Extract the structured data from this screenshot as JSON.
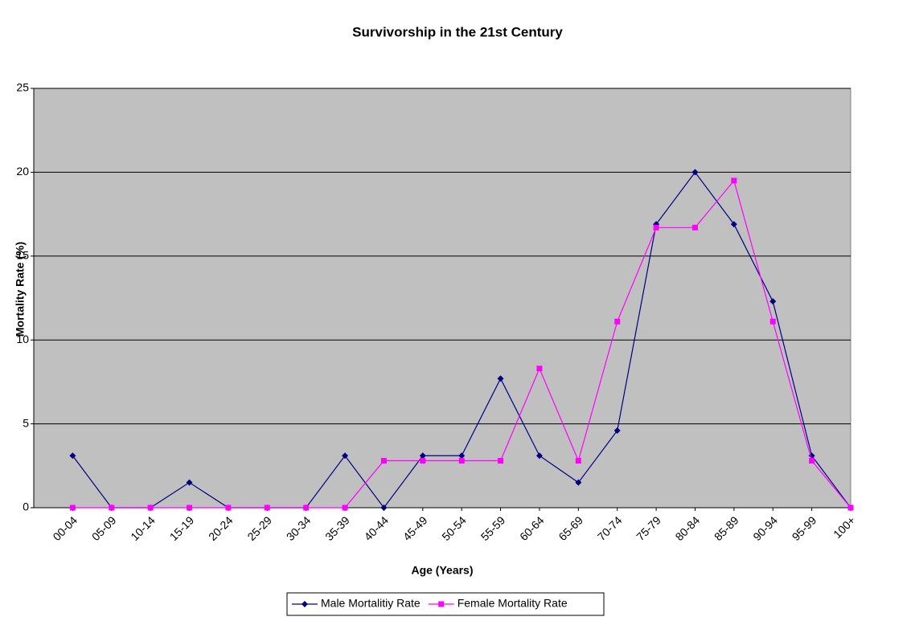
{
  "chart_data": {
    "type": "line",
    "title": "Survivorship in the 21st Century",
    "x_label": "Age (Years)",
    "y_label": "Mortality Rate (%)",
    "categories": [
      "00-04",
      "05-09",
      "10-14",
      "15-19",
      "20-24",
      "25-29",
      "30-34",
      "35-39",
      "40-44",
      "45-49",
      "50-54",
      "55-59",
      "60-64",
      "65-69",
      "70-74",
      "75-79",
      "80-84",
      "85-89",
      "90-94",
      "95-99",
      "100+"
    ],
    "series": [
      {
        "name": "Male Mortalitiy Rate",
        "color": "#000080",
        "marker": "diamond",
        "values": [
          3.1,
          0,
          0,
          1.5,
          0,
          0,
          0,
          3.1,
          0,
          3.1,
          3.1,
          7.7,
          3.1,
          1.5,
          4.6,
          16.9,
          20,
          16.9,
          12.3,
          3.1,
          0
        ]
      },
      {
        "name": "Female Mortality Rate",
        "color": "#ff00ff",
        "marker": "square",
        "values": [
          0,
          0,
          0,
          0,
          0,
          0,
          0,
          0,
          2.8,
          2.8,
          2.8,
          2.8,
          8.3,
          2.8,
          11.1,
          16.7,
          16.7,
          19.5,
          11.1,
          2.8,
          0
        ]
      }
    ],
    "ylim": [
      0,
      25
    ],
    "yticks": [
      0,
      5,
      10,
      15,
      20,
      25
    ],
    "grid": true,
    "legend": "bottom",
    "plot_background": "#c0c0c0"
  }
}
